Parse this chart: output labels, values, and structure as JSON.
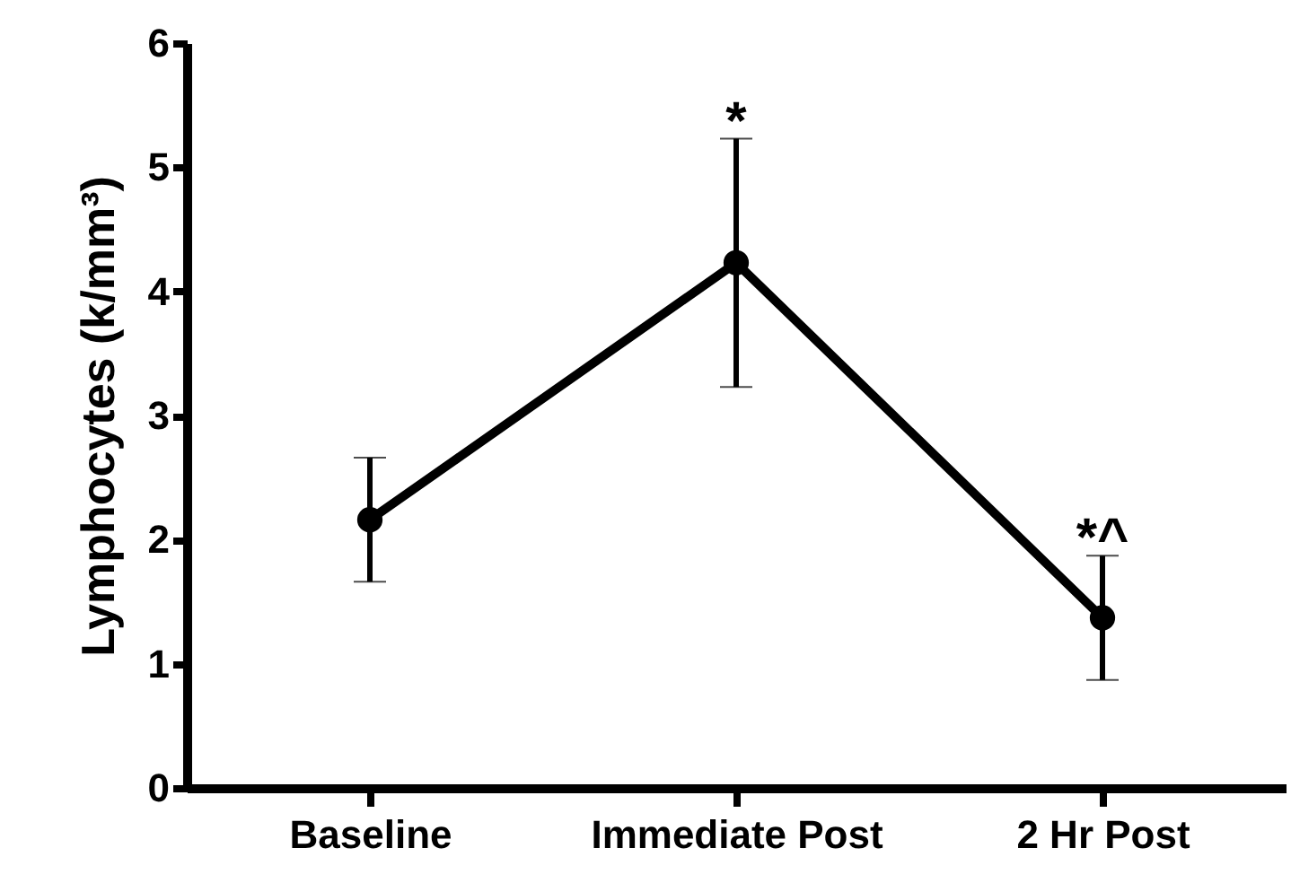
{
  "chart_data": {
    "type": "line",
    "ylabel": "Lymphocytes (k/mm³)",
    "categories": [
      "Baseline",
      "Immediate Post",
      "2 Hr Post"
    ],
    "series": [
      {
        "color": "#000000",
        "values": [
          2.16,
          4.23,
          1.37
        ],
        "errors": [
          0.5,
          1.0,
          0.5
        ],
        "value_labels": [
          null,
          "*",
          "*^"
        ]
      }
    ],
    "ylim": [
      0,
      6
    ],
    "yticks": [
      0,
      1,
      2,
      3,
      4,
      5,
      6
    ],
    "grid": false,
    "marker": "circle",
    "line_style": "solid"
  }
}
